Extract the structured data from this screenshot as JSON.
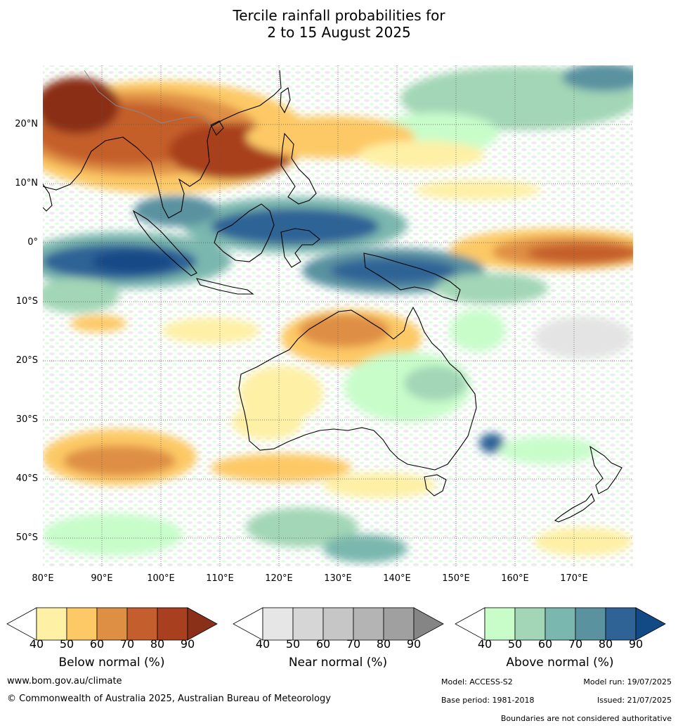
{
  "title": {
    "line1": "Tercile rainfall probabilities for",
    "line2": "2 to 15 August 2025"
  },
  "map": {
    "lat_labels": [
      "20°N",
      "10°N",
      "0°",
      "10°S",
      "20°S",
      "30°S",
      "40°S",
      "50°S"
    ],
    "lon_labels": [
      "80°E",
      "90°E",
      "100°E",
      "110°E",
      "120°E",
      "130°E",
      "140°E",
      "150°E",
      "160°E",
      "170°E"
    ],
    "grid": true,
    "region": "Australia, Indian Ocean, Maritime Continent and Western Pacific"
  },
  "legends": {
    "below": {
      "label": "Below normal (%)",
      "ticks": [
        "40",
        "50",
        "60",
        "70",
        "80",
        "90"
      ],
      "colors": [
        "#ffffff",
        "#fef0a5",
        "#fdc966",
        "#df8f44",
        "#c45e2c",
        "#a8401f",
        "#8a2f18"
      ]
    },
    "near": {
      "label": "Near normal (%)",
      "ticks": [
        "40",
        "50",
        "60",
        "70",
        "80",
        "90"
      ],
      "colors": [
        "#ffffff",
        "#e6e6e6",
        "#d6d6d6",
        "#c6c6c6",
        "#b4b4b4",
        "#a0a0a0",
        "#858585"
      ]
    },
    "above": {
      "label": "Above normal (%)",
      "ticks": [
        "40",
        "50",
        "60",
        "70",
        "80",
        "90"
      ],
      "colors": [
        "#ffffff",
        "#c8fdca",
        "#a2d6b6",
        "#7ab7ae",
        "#5a92a0",
        "#2f6396",
        "#124a86"
      ]
    }
  },
  "footer": {
    "url": "www.bom.gov.au/climate",
    "copyright": "© Commonwealth of Australia 2025, Australian Bureau of Meteorology",
    "model": "Model: ACCESS-S2",
    "model_run": "Model run: 19/07/2025",
    "base_period": "Base period: 1981-2018",
    "issued": "Issued: 21/07/2025",
    "boundaries": "Boundaries are not considered authoritative"
  }
}
